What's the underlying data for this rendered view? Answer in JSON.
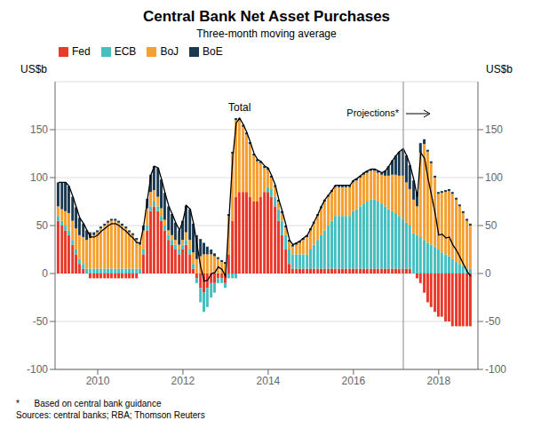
{
  "chart_data": {
    "type": "bar",
    "stacked": true,
    "title": "Central Bank Net Asset Purchases",
    "subtitle": "Three-month moving average",
    "ylabel": "US$b",
    "y2label": "US$b",
    "footnotes": [
      "*      Based on central bank guidance",
      "Sources: central banks; RBA; Thomson Reuters"
    ],
    "legend": "upper left",
    "grid": true,
    "xlim": [
      2009.0,
      2018.92
    ],
    "xticks": [
      2010,
      2012,
      2014,
      2016,
      2018
    ],
    "ylim": [
      -100,
      200
    ],
    "yticks": [
      -100,
      -50,
      0,
      50,
      100,
      150
    ],
    "y2lim": [
      -100,
      200
    ],
    "y2ticks": [
      -100,
      -50,
      0,
      50,
      100,
      150
    ],
    "annotations": [
      {
        "x": 2017.17,
        "text": "Projections*"
      }
    ],
    "x": [
      2009.08,
      2009.17,
      2009.25,
      2009.33,
      2009.42,
      2009.5,
      2009.58,
      2009.67,
      2009.75,
      2009.83,
      2009.92,
      2010.0,
      2010.08,
      2010.17,
      2010.25,
      2010.33,
      2010.42,
      2010.5,
      2010.58,
      2010.67,
      2010.75,
      2010.83,
      2010.92,
      2011.0,
      2011.08,
      2011.17,
      2011.25,
      2011.33,
      2011.42,
      2011.5,
      2011.58,
      2011.67,
      2011.75,
      2011.83,
      2011.92,
      2012.0,
      2012.08,
      2012.17,
      2012.25,
      2012.33,
      2012.42,
      2012.5,
      2012.58,
      2012.67,
      2012.75,
      2012.83,
      2012.92,
      2013.0,
      2013.08,
      2013.17,
      2013.25,
      2013.33,
      2013.42,
      2013.5,
      2013.58,
      2013.67,
      2013.75,
      2013.83,
      2013.92,
      2014.0,
      2014.08,
      2014.17,
      2014.25,
      2014.33,
      2014.42,
      2014.5,
      2014.58,
      2014.67,
      2014.75,
      2014.83,
      2014.92,
      2015.0,
      2015.08,
      2015.17,
      2015.25,
      2015.33,
      2015.42,
      2015.5,
      2015.58,
      2015.67,
      2015.75,
      2015.83,
      2015.92,
      2016.0,
      2016.08,
      2016.17,
      2016.25,
      2016.33,
      2016.42,
      2016.5,
      2016.58,
      2016.67,
      2016.75,
      2016.83,
      2016.92,
      2017.0,
      2017.08,
      2017.17,
      2017.25,
      2017.33,
      2017.42,
      2017.5,
      2017.58,
      2017.67,
      2017.75,
      2017.83,
      2017.92,
      2018.0,
      2018.08,
      2018.17,
      2018.25,
      2018.33,
      2018.42,
      2018.5,
      2018.58,
      2018.67,
      2018.75
    ],
    "series": [
      {
        "name": "Fed",
        "color": "#E8392A",
        "values": [
          55,
          50,
          45,
          40,
          30,
          20,
          10,
          5,
          0,
          -5,
          -5,
          -5,
          -5,
          -5,
          -5,
          -5,
          -5,
          -5,
          -5,
          -5,
          -5,
          -5,
          -5,
          0,
          20,
          45,
          65,
          70,
          65,
          55,
          45,
          35,
          30,
          25,
          20,
          25,
          30,
          20,
          5,
          -5,
          -15,
          -20,
          -15,
          -10,
          -10,
          -5,
          -5,
          -10,
          20,
          55,
          80,
          85,
          85,
          85,
          80,
          75,
          75,
          80,
          85,
          85,
          80,
          70,
          55,
          40,
          25,
          10,
          5,
          5,
          5,
          5,
          5,
          5,
          5,
          5,
          5,
          5,
          5,
          5,
          5,
          5,
          5,
          5,
          5,
          5,
          5,
          5,
          5,
          5,
          5,
          5,
          5,
          5,
          5,
          5,
          5,
          5,
          5,
          5,
          5,
          5,
          0,
          -5,
          -10,
          -20,
          -30,
          -35,
          -40,
          -45,
          -45,
          -50,
          -50,
          -55,
          -55,
          -55,
          -55,
          -55,
          -55
        ]
      },
      {
        "name": "ECB",
        "color": "#45BFBF",
        "values": [
          5,
          5,
          5,
          5,
          5,
          5,
          5,
          5,
          5,
          5,
          5,
          5,
          5,
          5,
          5,
          5,
          5,
          5,
          5,
          5,
          5,
          5,
          5,
          5,
          5,
          5,
          5,
          5,
          5,
          5,
          5,
          5,
          5,
          5,
          5,
          5,
          5,
          5,
          5,
          -5,
          -15,
          -20,
          -20,
          -15,
          -10,
          -5,
          -5,
          -5,
          -5,
          -5,
          -5,
          0,
          0,
          0,
          0,
          0,
          0,
          0,
          0,
          5,
          8,
          10,
          12,
          15,
          15,
          15,
          15,
          15,
          15,
          15,
          15,
          20,
          25,
          30,
          35,
          40,
          45,
          50,
          55,
          55,
          55,
          55,
          55,
          60,
          62,
          65,
          68,
          70,
          72,
          72,
          70,
          68,
          65,
          62,
          60,
          58,
          55,
          52,
          48,
          45,
          42,
          40,
          38,
          35,
          32,
          30,
          28,
          25,
          22,
          20,
          18,
          15,
          12,
          10,
          8,
          5,
          5
        ]
      },
      {
        "name": "BoJ",
        "color": "#F5A030",
        "values": [
          10,
          12,
          15,
          18,
          20,
          22,
          25,
          28,
          30,
          32,
          35,
          38,
          42,
          45,
          48,
          50,
          50,
          48,
          45,
          42,
          38,
          35,
          30,
          25,
          20,
          18,
          15,
          12,
          10,
          8,
          6,
          5,
          5,
          5,
          5,
          5,
          8,
          10,
          12,
          15,
          18,
          20,
          20,
          20,
          18,
          15,
          12,
          10,
          40,
          70,
          80,
          75,
          68,
          60,
          55,
          48,
          42,
          35,
          25,
          18,
          12,
          10,
          8,
          8,
          8,
          8,
          8,
          10,
          12,
          15,
          18,
          20,
          22,
          25,
          28,
          30,
          30,
          30,
          30,
          30,
          30,
          30,
          30,
          30,
          30,
          30,
          30,
          30,
          30,
          30,
          30,
          30,
          32,
          35,
          38,
          40,
          42,
          45,
          42,
          38,
          35,
          30,
          88,
          100,
          95,
          85,
          72,
          58,
          62,
          65,
          68,
          68,
          65,
          60,
          55,
          50,
          45
        ]
      },
      {
        "name": "BoE",
        "color": "#1B3A52",
        "values": [
          25,
          28,
          30,
          28,
          25,
          22,
          18,
          14,
          10,
          6,
          3,
          2,
          2,
          2,
          2,
          2,
          2,
          2,
          2,
          2,
          2,
          2,
          2,
          2,
          5,
          10,
          18,
          25,
          30,
          30,
          28,
          25,
          22,
          18,
          15,
          20,
          28,
          32,
          30,
          25,
          18,
          12,
          8,
          5,
          3,
          2,
          2,
          2,
          2,
          2,
          2,
          2,
          2,
          2,
          2,
          2,
          2,
          2,
          2,
          2,
          2,
          2,
          2,
          2,
          2,
          2,
          2,
          2,
          2,
          2,
          2,
          2,
          2,
          2,
          2,
          2,
          2,
          2,
          2,
          2,
          2,
          2,
          2,
          2,
          2,
          2,
          2,
          2,
          2,
          2,
          2,
          2,
          5,
          10,
          15,
          20,
          25,
          28,
          28,
          25,
          20,
          15,
          10,
          5,
          2,
          2,
          2,
          2,
          2,
          2,
          2,
          2,
          2,
          2,
          2,
          2,
          2
        ]
      },
      {
        "name": "Total",
        "type": "line",
        "color": "#000000",
        "values": [
          95,
          95,
          95,
          91,
          80,
          69,
          58,
          52,
          45,
          38,
          38,
          40,
          44,
          47,
          50,
          52,
          52,
          50,
          47,
          44,
          40,
          37,
          32,
          32,
          50,
          78,
          103,
          112,
          110,
          98,
          84,
          70,
          62,
          53,
          45,
          55,
          71,
          67,
          52,
          30,
          6,
          -8,
          -7,
          0,
          1,
          7,
          4,
          -3,
          57,
          122,
          157,
          162,
          155,
          147,
          137,
          125,
          119,
          117,
          112,
          110,
          102,
          92,
          77,
          65,
          50,
          35,
          30,
          32,
          34,
          37,
          40,
          47,
          54,
          62,
          70,
          77,
          82,
          87,
          92,
          92,
          92,
          92,
          92,
          97,
          99,
          102,
          105,
          107,
          109,
          109,
          107,
          105,
          107,
          112,
          118,
          123,
          127,
          130,
          123,
          113,
          97,
          80,
          126,
          120,
          99,
          82,
          62,
          40,
          41,
          37,
          38,
          30,
          24,
          17,
          10,
          2,
          -3
        ]
      }
    ]
  }
}
